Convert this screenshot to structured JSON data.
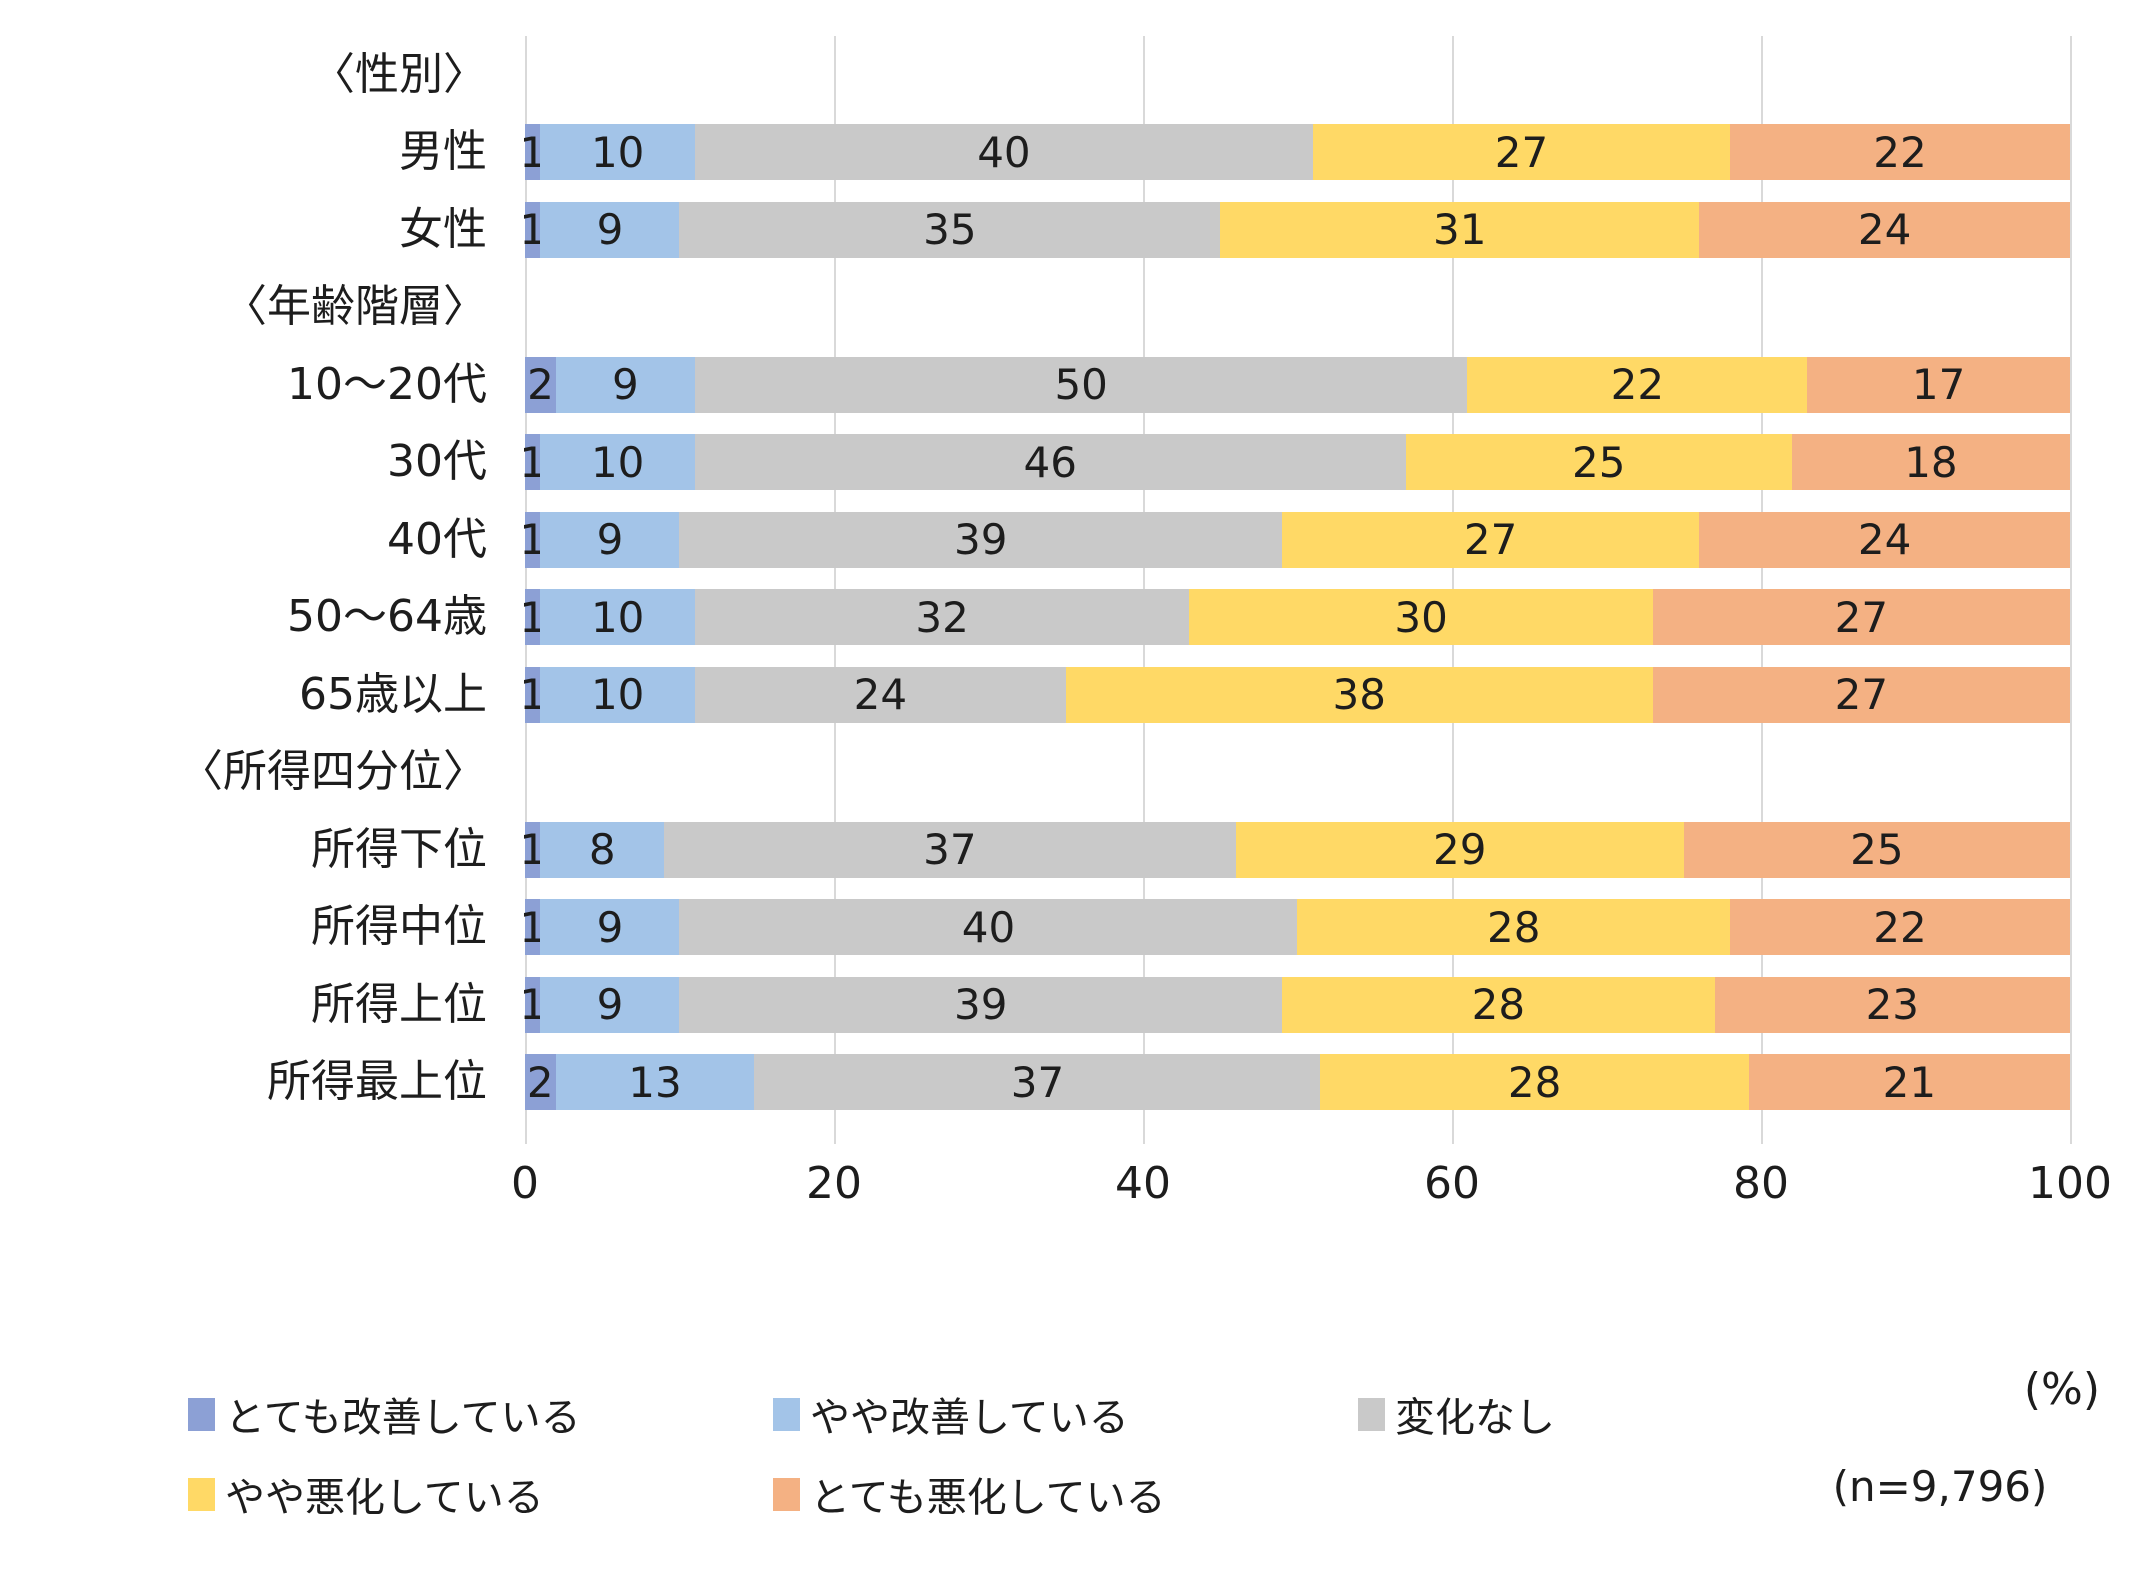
{
  "chart_data": {
    "type": "bar",
    "orientation": "horizontal",
    "stacked": true,
    "title": "",
    "xlabel": "",
    "ylabel": "",
    "xlim": [
      0,
      100
    ],
    "x_ticks": [
      0,
      20,
      40,
      60,
      80,
      100
    ],
    "grid": true,
    "legend_position": "bottom",
    "unit_label": "(%)",
    "sample_size_label": "(n=9,796)",
    "series_names": [
      "とても改善している",
      "やや改善している",
      "変化なし",
      "やや悪化している",
      "とても悪化している"
    ],
    "series_colors": [
      "#8ca0d5",
      "#a3c4e8",
      "#c9c9c9",
      "#ffd966",
      "#f4b183"
    ],
    "legend_rows": [
      [
        0,
        1,
        2
      ],
      [
        3,
        4
      ]
    ],
    "rows": [
      {
        "type": "group",
        "label": "〈性別〉"
      },
      {
        "type": "bar",
        "label": "男性",
        "values": [
          1,
          10,
          40,
          27,
          22
        ]
      },
      {
        "type": "bar",
        "label": "女性",
        "values": [
          1,
          9,
          35,
          31,
          24
        ]
      },
      {
        "type": "group",
        "label": "〈年齢階層〉"
      },
      {
        "type": "bar",
        "label": "10〜20代",
        "values": [
          2,
          9,
          50,
          22,
          17
        ]
      },
      {
        "type": "bar",
        "label": "30代",
        "values": [
          1,
          10,
          46,
          25,
          18
        ]
      },
      {
        "type": "bar",
        "label": "40代",
        "values": [
          1,
          9,
          39,
          27,
          24
        ]
      },
      {
        "type": "bar",
        "label": "50〜64歳",
        "values": [
          1,
          10,
          32,
          30,
          27
        ]
      },
      {
        "type": "bar",
        "label": "65歳以上",
        "values": [
          1,
          10,
          24,
          38,
          27
        ]
      },
      {
        "type": "group",
        "label": "〈所得四分位〉"
      },
      {
        "type": "bar",
        "label": "所得下位",
        "values": [
          1,
          8,
          37,
          29,
          25
        ]
      },
      {
        "type": "bar",
        "label": "所得中位",
        "values": [
          1,
          9,
          40,
          28,
          22
        ]
      },
      {
        "type": "bar",
        "label": "所得上位",
        "values": [
          1,
          9,
          39,
          28,
          23
        ]
      },
      {
        "type": "bar",
        "label": "所得最上位",
        "values": [
          2,
          13,
          37,
          28,
          21
        ]
      }
    ],
    "colors": {
      "gridline": "#d9d9d9",
      "text": "#1d1d1d",
      "background": "#ffffff"
    }
  }
}
